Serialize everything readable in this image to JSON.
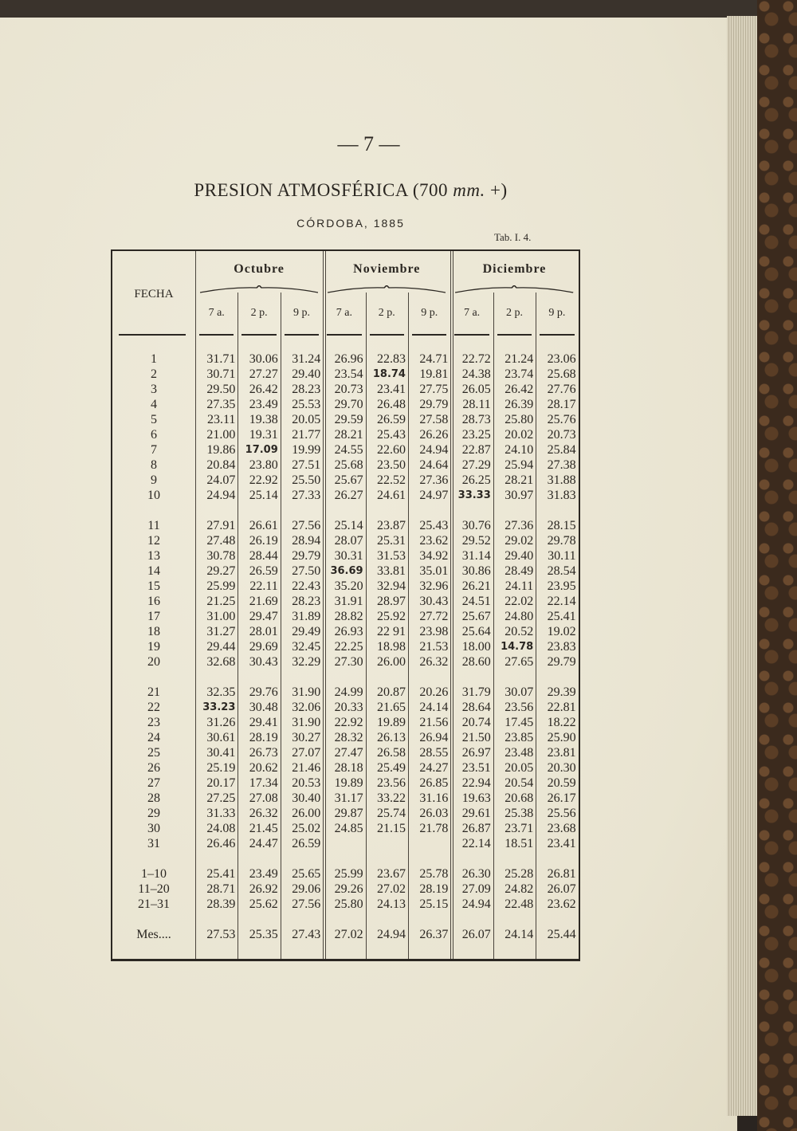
{
  "page_number": "— 7 —",
  "title_main": "PRESION ATMOSFÉRICA (700 ",
  "title_unit": "mm.",
  "title_end": " +)",
  "subtitle": "CÓRDOBA, 1885",
  "table_ref": "Tab. I. 4.",
  "table": {
    "date_header": "FECHA",
    "months": [
      "Octubre",
      "Noviembre",
      "Diciembre"
    ],
    "subheaders": [
      "7 a.",
      "2 p.",
      "9 p."
    ],
    "groups": [
      [
        [
          "1",
          "31.71",
          "30.06",
          "31.24",
          "26.96",
          "22.83",
          "24.71",
          "22.72",
          "21.24",
          "23.06"
        ],
        [
          "2",
          "30.71",
          "27.27",
          "29.40",
          "23.54",
          "18.74",
          "19.81",
          "24.38",
          "23.74",
          "25.68"
        ],
        [
          "3",
          "29.50",
          "26.42",
          "28.23",
          "20.73",
          "23.41",
          "27.75",
          "26.05",
          "26.42",
          "27.76"
        ],
        [
          "4",
          "27.35",
          "23.49",
          "25.53",
          "29.70",
          "26.48",
          "29.79",
          "28.11",
          "26.39",
          "28.17"
        ],
        [
          "5",
          "23.11",
          "19.38",
          "20.05",
          "29.59",
          "26.59",
          "27.58",
          "28.73",
          "25.80",
          "25.76"
        ],
        [
          "6",
          "21.00",
          "19.31",
          "21.77",
          "28.21",
          "25.43",
          "26.26",
          "23.25",
          "20.02",
          "20.73"
        ],
        [
          "7",
          "19.86",
          "17.09",
          "19.99",
          "24.55",
          "22.60",
          "24.94",
          "22.87",
          "24.10",
          "25.84"
        ],
        [
          "8",
          "20.84",
          "23.80",
          "27.51",
          "25.68",
          "23.50",
          "24.64",
          "27.29",
          "25.94",
          "27.38"
        ],
        [
          "9",
          "24.07",
          "22.92",
          "25.50",
          "25.67",
          "22.52",
          "27.36",
          "26.25",
          "28.21",
          "31.88"
        ],
        [
          "10",
          "24.94",
          "25.14",
          "27.33",
          "26.27",
          "24.61",
          "24.97",
          "33.33",
          "30.97",
          "31.83"
        ]
      ],
      [
        [
          "11",
          "27.91",
          "26.61",
          "27.56",
          "25.14",
          "23.87",
          "25.43",
          "30.76",
          "27.36",
          "28.15"
        ],
        [
          "12",
          "27.48",
          "26.19",
          "28.94",
          "28.07",
          "25.31",
          "23.62",
          "29.52",
          "29.02",
          "29.78"
        ],
        [
          "13",
          "30.78",
          "28.44",
          "29.79",
          "30.31",
          "31.53",
          "34.92",
          "31.14",
          "29.40",
          "30.11"
        ],
        [
          "14",
          "29.27",
          "26.59",
          "27.50",
          "36.69",
          "33.81",
          "35.01",
          "30.86",
          "28.49",
          "28.54"
        ],
        [
          "15",
          "25.99",
          "22.11",
          "22.43",
          "35.20",
          "32.94",
          "32.96",
          "26.21",
          "24.11",
          "23.95"
        ],
        [
          "16",
          "21.25",
          "21.69",
          "28.23",
          "31.91",
          "28.97",
          "30.43",
          "24.51",
          "22.02",
          "22.14"
        ],
        [
          "17",
          "31.00",
          "29.47",
          "31.89",
          "28.82",
          "25.92",
          "27.72",
          "25.67",
          "24.80",
          "25.41"
        ],
        [
          "18",
          "31.27",
          "28.01",
          "29.49",
          "26.93",
          "22 91",
          "23.98",
          "25.64",
          "20.52",
          "19.02"
        ],
        [
          "19",
          "29.44",
          "29.69",
          "32.45",
          "22.25",
          "18.98",
          "21.53",
          "18.00",
          "14.78",
          "23.83"
        ],
        [
          "20",
          "32.68",
          "30.43",
          "32.29",
          "27.30",
          "26.00",
          "26.32",
          "28.60",
          "27.65",
          "29.79"
        ]
      ],
      [
        [
          "21",
          "32.35",
          "29.76",
          "31.90",
          "24.99",
          "20.87",
          "20.26",
          "31.79",
          "30.07",
          "29.39"
        ],
        [
          "22",
          "33.23",
          "30.48",
          "32.06",
          "20.33",
          "21.65",
          "24.14",
          "28.64",
          "23.56",
          "22.81"
        ],
        [
          "23",
          "31.26",
          "29.41",
          "31.90",
          "22.92",
          "19.89",
          "21.56",
          "20.74",
          "17.45",
          "18.22"
        ],
        [
          "24",
          "30.61",
          "28.19",
          "30.27",
          "28.32",
          "26.13",
          "26.94",
          "21.50",
          "23.85",
          "25.90"
        ],
        [
          "25",
          "30.41",
          "26.73",
          "27.07",
          "27.47",
          "26.58",
          "28.55",
          "26.97",
          "23.48",
          "23.81"
        ],
        [
          "26",
          "25.19",
          "20.62",
          "21.46",
          "28.18",
          "25.49",
          "24.27",
          "23.51",
          "20.05",
          "20.30"
        ],
        [
          "27",
          "20.17",
          "17.34",
          "20.53",
          "19.89",
          "23.56",
          "26.85",
          "22.94",
          "20.54",
          "20.59"
        ],
        [
          "28",
          "27.25",
          "27.08",
          "30.40",
          "31.17",
          "33.22",
          "31.16",
          "19.63",
          "20.68",
          "26.17"
        ],
        [
          "29",
          "31.33",
          "26.32",
          "26.00",
          "29.87",
          "25.74",
          "26.03",
          "29.61",
          "25.38",
          "25.56"
        ],
        [
          "30",
          "24.08",
          "21.45",
          "25.02",
          "24.85",
          "21.15",
          "21.78",
          "26.87",
          "23.71",
          "23.68"
        ],
        [
          "31",
          "26.46",
          "24.47",
          "26.59",
          "",
          "",
          "",
          "22.14",
          "18.51",
          "23.41"
        ]
      ],
      [
        [
          "1–10",
          "25.41",
          "23.49",
          "25.65",
          "25.99",
          "23.67",
          "25.78",
          "26.30",
          "25.28",
          "26.81"
        ],
        [
          "11–20",
          "28.71",
          "26.92",
          "29.06",
          "29.26",
          "27.02",
          "28.19",
          "27.09",
          "24.82",
          "26.07"
        ],
        [
          "21–31",
          "28.39",
          "25.62",
          "27.56",
          "25.80",
          "24.13",
          "25.15",
          "24.94",
          "22.48",
          "23.62"
        ]
      ],
      [
        [
          "Mes....",
          "27.53",
          "25.35",
          "27.43",
          "27.02",
          "24.94",
          "26.37",
          "26.07",
          "24.14",
          "25.44"
        ]
      ]
    ],
    "bold_cells": [
      "2:5",
      "7:2",
      "10:7",
      "14:4",
      "19:8",
      "22:1"
    ]
  }
}
